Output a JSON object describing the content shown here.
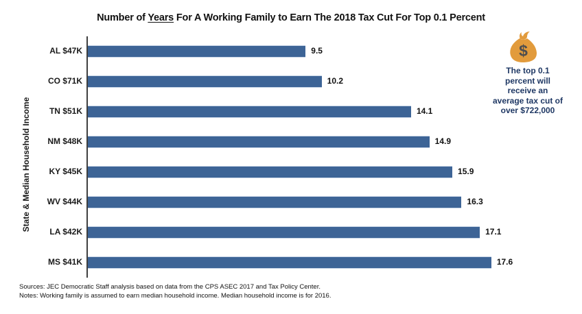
{
  "title": {
    "prefix": "Number of ",
    "underlined_word": "Years",
    "suffix": " For A Working Family to Earn The 2018 Tax Cut For Top 0.1 Percent"
  },
  "chart_data": {
    "type": "bar",
    "orientation": "horizontal",
    "title": "Number of Years For A Working Family to Earn The 2018 Tax Cut For Top 0.1 Percent",
    "categories": [
      "AL $47K",
      "CO $71K",
      "TN $51K",
      "NM $48K",
      "KY $45K",
      "WV $44K",
      "LA $42K",
      "MS $41K"
    ],
    "values": [
      9.5,
      10.2,
      14.1,
      14.9,
      15.9,
      16.3,
      17.1,
      17.6
    ],
    "value_labels": [
      "9.5",
      "10.2",
      "14.1",
      "14.9",
      "15.9",
      "16.3",
      "17.1",
      "17.6"
    ],
    "xlabel": "",
    "ylabel": "State & Median Household Income",
    "xlim": [
      0,
      18
    ],
    "grid": false,
    "legend": false,
    "bar_color": "#3d6496"
  },
  "annotation": {
    "icon": "money-bag-icon",
    "icon_body_color": "#e29b3c",
    "icon_symbol": "$",
    "icon_symbol_color": "#4d4d4f",
    "text": "The top 0.1\npercent will\nreceive an\naverage tax cut of\nover $722,000",
    "text_color": "#1f3864"
  },
  "footnotes": {
    "sources": "Sources: JEC Democratic Staff analysis based on data from the CPS ASEC 2017 and Tax Policy Center.",
    "notes": "Notes: Working family is assumed to earn median household income. Median household income is for 2016."
  }
}
